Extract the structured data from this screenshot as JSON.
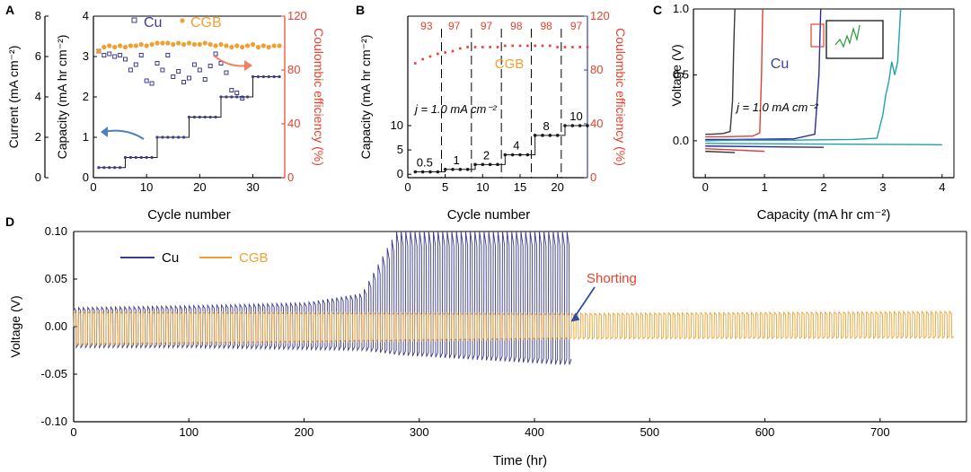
{
  "colors": {
    "cu": "#3b3b8f",
    "cgb": "#f0a030",
    "ce": "#e8402a",
    "step": "#1a1a1a",
    "axisBlue": "#4040a0",
    "arrowBlue": "#4a7fc0",
    "arrowOrange": "#f08060"
  },
  "chart_data": [
    {
      "panel": "A",
      "type": "scatter",
      "ylabel_left_outer": "Current (mA cm⁻²)",
      "ylabel_left_inner": "Capacity (mA hr cm⁻²)",
      "ylabel_right": "Coulombic efficiency (%)",
      "xlabel": "Cycle number",
      "xlim": [
        0,
        36
      ],
      "xticks": [
        "0",
        "10",
        "20",
        "30"
      ],
      "ylim_outer": [
        0,
        8
      ],
      "yticks_outer": [
        "0",
        "2",
        "4",
        "6",
        "8"
      ],
      "ylim_inner": [
        0,
        4
      ],
      "yticks_inner": [
        "0",
        "1",
        "2",
        "3",
        "4"
      ],
      "ylim_right": [
        0,
        120
      ],
      "yticks_right": [
        "0",
        "40",
        "80",
        "120"
      ],
      "legend": {
        "cu": "Cu",
        "cgb": "CGB"
      },
      "step_x": [
        1,
        2,
        3,
        4,
        5,
        6,
        7,
        8,
        9,
        10,
        11,
        12,
        13,
        14,
        15,
        16,
        17,
        18,
        19,
        20,
        21,
        22,
        23,
        24,
        25,
        26,
        27,
        28,
        29,
        30,
        31,
        32,
        33,
        34,
        35
      ],
      "step_y": [
        0.25,
        0.25,
        0.25,
        0.25,
        0.25,
        0.5,
        0.5,
        0.5,
        0.5,
        0.5,
        0.5,
        1,
        1,
        1,
        1,
        1,
        1,
        1.5,
        1.5,
        1.5,
        1.5,
        1.5,
        1.5,
        2,
        2,
        2,
        2,
        2,
        2,
        2.5,
        2.5,
        2.5,
        2.5,
        2.5,
        2.5
      ],
      "cu_x": [
        1,
        2,
        3,
        4,
        5,
        6,
        7,
        8,
        9,
        10,
        11,
        12,
        13,
        14,
        15,
        16,
        17,
        18,
        19,
        20,
        21,
        22,
        23,
        24,
        25,
        26,
        27,
        28
      ],
      "cu_ce": [
        94,
        91,
        92,
        90,
        91,
        88,
        80,
        84,
        91,
        72,
        70,
        85,
        80,
        91,
        75,
        79,
        71,
        74,
        84,
        80,
        73,
        83,
        92,
        85,
        78,
        65,
        63,
        59
      ],
      "cgb_x": [
        1,
        2,
        3,
        4,
        5,
        6,
        7,
        8,
        9,
        10,
        11,
        12,
        13,
        14,
        15,
        16,
        17,
        18,
        19,
        20,
        21,
        22,
        23,
        24,
        25,
        26,
        27,
        28,
        29,
        30,
        31,
        32,
        33,
        34,
        35
      ],
      "cgb_ce": [
        94,
        97,
        98,
        97,
        98,
        97,
        98,
        98,
        99,
        98,
        99,
        100,
        100,
        100,
        99,
        100,
        99,
        100,
        99,
        99,
        100,
        99,
        98,
        99,
        98,
        97,
        98,
        97,
        98,
        99,
        97,
        98,
        97,
        98,
        98
      ]
    },
    {
      "panel": "B",
      "type": "line",
      "ylabel_left": "Capacity (mA hr cm⁻²)",
      "ylabel_right": "Coulombic efficiency (%)",
      "xlabel": "Cycle number",
      "annotation": "j = 1.0 mA cm⁻²",
      "series_label": "CGB",
      "xlim": [
        0,
        24
      ],
      "xticks": [
        "0",
        "5",
        "10",
        "15",
        "20"
      ],
      "ylim_left": [
        -0.7,
        32.5
      ],
      "yticks_left": [
        "0",
        "5",
        "10"
      ],
      "ylim_right": [
        0,
        120
      ],
      "yticks_right": [
        "0",
        "40",
        "80",
        "120"
      ],
      "dividers_x": [
        4.5,
        8.5,
        12.5,
        16.5,
        20.5
      ],
      "step_x": [
        1,
        2,
        3,
        4,
        5,
        6,
        7,
        8,
        9,
        10,
        11,
        12,
        13,
        14,
        15,
        16,
        17,
        18,
        19,
        20,
        21,
        22,
        23,
        24
      ],
      "step_y": [
        0.5,
        0.5,
        0.5,
        0.5,
        1,
        1,
        1,
        1,
        2,
        2,
        2,
        2,
        4,
        4,
        4,
        4,
        8,
        8,
        8,
        8,
        10,
        10,
        10,
        10
      ],
      "step_labels": [
        "0.5",
        "1",
        "2",
        "4",
        "8",
        "10"
      ],
      "ce_x": [
        1,
        2,
        3,
        4,
        5,
        6,
        7,
        8,
        9,
        10,
        11,
        12,
        13,
        14,
        15,
        16,
        17,
        18,
        19,
        20,
        21,
        22,
        23,
        24
      ],
      "ce_y": [
        85,
        88,
        90,
        92,
        93,
        94,
        96,
        97,
        97,
        97,
        97,
        97,
        98,
        98,
        98,
        98,
        98,
        98,
        98,
        97,
        97,
        97,
        97,
        97
      ],
      "ce_labels": [
        "93",
        "97",
        "97",
        "98",
        "98",
        "97"
      ]
    },
    {
      "panel": "C",
      "type": "line",
      "ylabel": "Voltage (V)",
      "xlabel": "Capacity (mA hr cm⁻²)",
      "annotation": "j = 1.0 mA cm⁻²",
      "series_label": "Cu",
      "xlim": [
        -0.2,
        4.2
      ],
      "xticks": [
        "0",
        "1",
        "2",
        "3",
        "4"
      ],
      "ylim": [
        -0.28,
        1.0
      ],
      "yticks": [
        "0.0",
        "0.5",
        "1.0"
      ],
      "curves": [
        {
          "color": "#3a3a3a",
          "x": [
            0,
            0.1,
            0.3,
            0.42,
            0.46,
            0.48,
            0.5
          ],
          "y": [
            0.05,
            0.05,
            0.055,
            0.07,
            0.3,
            0.7,
            1.0
          ]
        },
        {
          "color": "#e04030",
          "x": [
            0,
            0.3,
            0.8,
            0.92,
            0.95,
            0.97
          ],
          "y": [
            0.03,
            0.03,
            0.035,
            0.06,
            0.5,
            1.0
          ]
        },
        {
          "color": "#2a2a9a",
          "x": [
            0,
            0.5,
            1.5,
            1.85,
            1.92,
            1.95
          ],
          "y": [
            0.01,
            0.01,
            0.015,
            0.05,
            0.5,
            1.0
          ]
        },
        {
          "color": "#20a0b0",
          "x": [
            0,
            0.5,
            1.5,
            2.5,
            2.9,
            3.0,
            3.05,
            3.1,
            3.15,
            3.2,
            3.25,
            3.3
          ],
          "y": [
            0.0,
            0.005,
            0.005,
            0.01,
            0.02,
            0.2,
            0.35,
            0.45,
            0.6,
            0.5,
            0.6,
            1.0
          ]
        },
        {
          "color": "#3a3a3a",
          "x": [
            0,
            0.5
          ],
          "y": [
            -0.08,
            -0.09
          ]
        },
        {
          "color": "#e04030",
          "x": [
            0,
            1.0
          ],
          "y": [
            -0.06,
            -0.08
          ]
        },
        {
          "color": "#2a2a9a",
          "x": [
            0,
            2.0
          ],
          "y": [
            -0.04,
            -0.05
          ]
        },
        {
          "color": "#20a0b0",
          "x": [
            0,
            4.0
          ],
          "y": [
            -0.02,
            -0.03
          ]
        }
      ]
    },
    {
      "panel": "D",
      "type": "line",
      "ylabel": "Voltage (V)",
      "xlabel": "Time (hr)",
      "xlim": [
        0,
        775
      ],
      "xticks": [
        "0",
        "100",
        "200",
        "300",
        "400",
        "500",
        "600",
        "700"
      ],
      "ylim": [
        -0.1,
        0.1
      ],
      "yticks": [
        "-0.10",
        "-0.05",
        "0.00",
        "0.05",
        "0.10"
      ],
      "annotation": "Shorting",
      "shorting_x": 430,
      "series": [
        {
          "name": "Cu",
          "color": "#3b3b8f",
          "t_end": 430,
          "period": 4,
          "amplitude_hr": [
            0,
            100,
            200,
            250,
            280,
            350,
            420,
            430
          ],
          "amplitude_v": [
            0.02,
            0.022,
            0.025,
            0.035,
            0.1,
            0.1,
            0.1,
            0.1
          ],
          "neg_v": [
            0.022,
            0.022,
            0.024,
            0.025,
            0.03,
            0.035,
            0.04,
            0.04
          ]
        },
        {
          "name": "CGB",
          "color": "#f0a030",
          "t_end": 760,
          "period": 4,
          "amplitude_hr": [
            0,
            430,
            760
          ],
          "amplitude_v": [
            0.016,
            0.014,
            0.016
          ],
          "neg_v": [
            0.02,
            0.013,
            0.012
          ]
        }
      ]
    }
  ]
}
